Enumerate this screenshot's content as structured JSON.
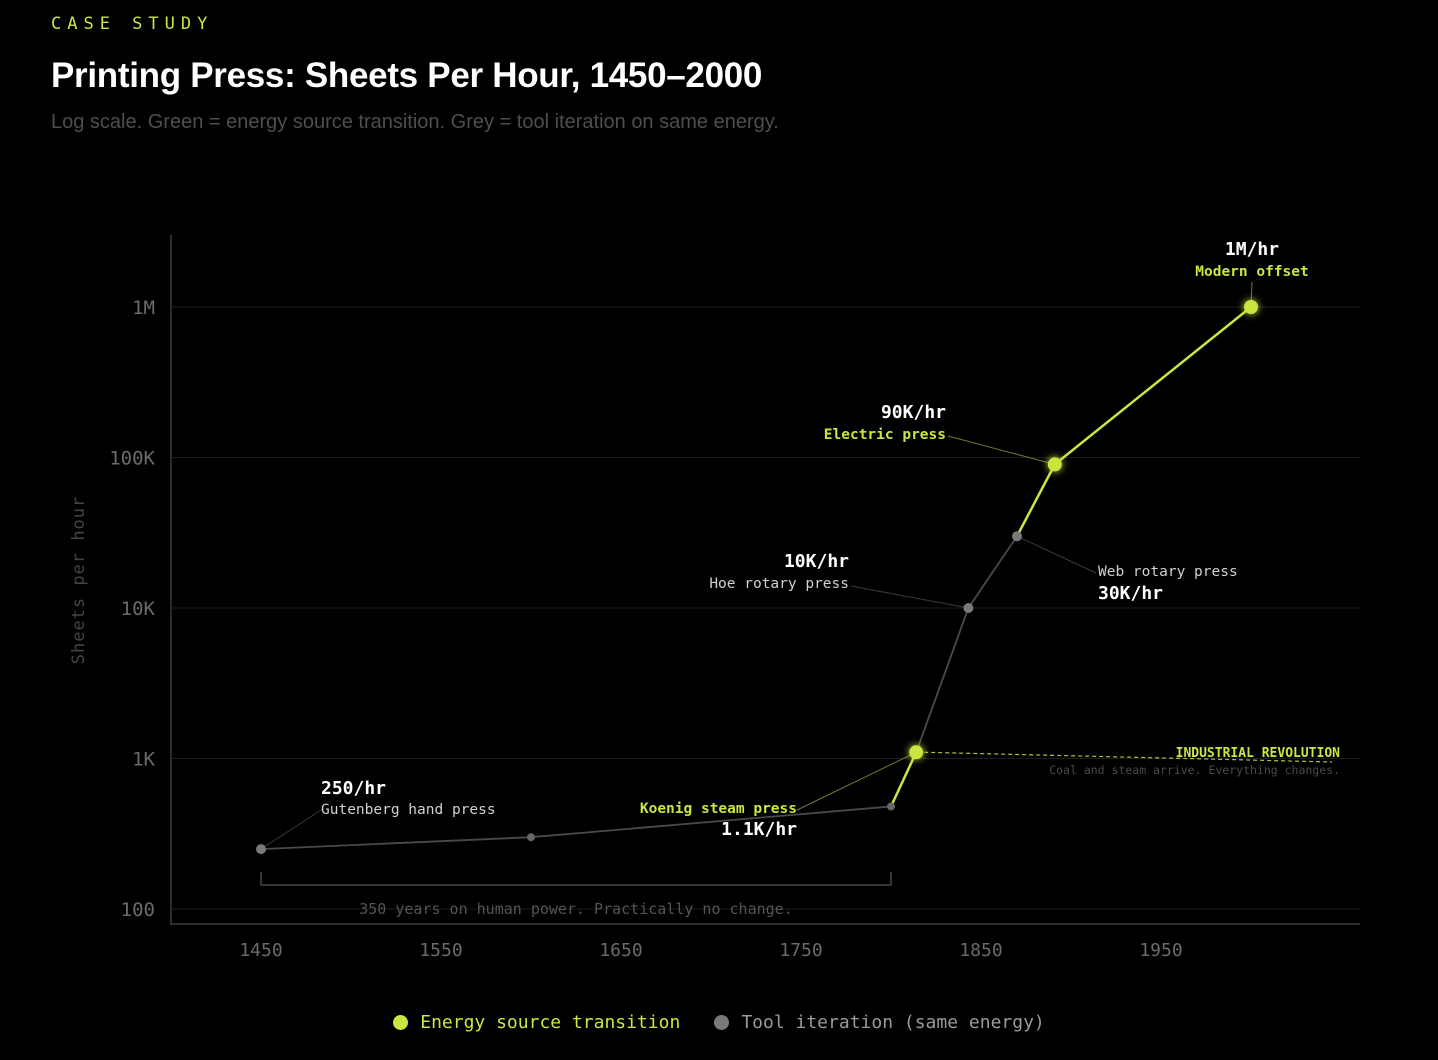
{
  "header": {
    "eyebrow": "CASE STUDY",
    "title": "Printing Press: Sheets Per Hour, 1450–2000",
    "subtitle": "Log scale. Green = energy source transition. Grey = tool iteration on same energy."
  },
  "colors": {
    "accent": "#c9e641",
    "tool": "#7a7a7a",
    "background": "#000000",
    "grid": "#1c1c1c",
    "axis_text": "#6b6b6b"
  },
  "chart_data": {
    "type": "line",
    "title": "Printing Press: Sheets Per Hour, 1450–2000",
    "xlabel": "",
    "ylabel": "Sheets per hour",
    "scale_y": "log",
    "xlim": [
      1400,
      2060
    ],
    "ylim": [
      80,
      2800000
    ],
    "x_ticks": [
      1450,
      1550,
      1650,
      1750,
      1850,
      1950
    ],
    "y_ticks": [
      {
        "value": 100,
        "label": "100"
      },
      {
        "value": 1000,
        "label": "1K"
      },
      {
        "value": 10000,
        "label": "10K"
      },
      {
        "value": 100000,
        "label": "100K"
      },
      {
        "value": 1000000,
        "label": "1M"
      }
    ],
    "points": [
      {
        "x": 1450,
        "y": 250,
        "kind": "tool",
        "label": "Gutenberg hand press",
        "value_label": "250/hr"
      },
      {
        "x": 1600,
        "y": 300,
        "kind": "tool-minor"
      },
      {
        "x": 1800,
        "y": 480,
        "kind": "tool-minor"
      },
      {
        "x": 1814,
        "y": 1100,
        "kind": "energy",
        "label": "Koenig steam press",
        "value_label": "1.1K/hr"
      },
      {
        "x": 1843,
        "y": 10000,
        "kind": "tool",
        "label": "Hoe rotary press",
        "value_label": "10K/hr"
      },
      {
        "x": 1870,
        "y": 30000,
        "kind": "tool",
        "label": "Web rotary press",
        "value_label": "30K/hr"
      },
      {
        "x": 1891,
        "y": 90000,
        "kind": "energy",
        "label": "Electric press",
        "value_label": "90K/hr"
      },
      {
        "x": 2000,
        "y": 1000000,
        "kind": "energy",
        "label": "Modern offset",
        "value_label": "1M/hr"
      }
    ],
    "annotations": {
      "industrial_title": "INDUSTRIAL REVOLUTION",
      "industrial_sub": "Coal and steam arrive. Everything changes.",
      "span_label": "350 years on human power. Practically no change.",
      "span_from": 1450,
      "span_to": 1800
    },
    "legend": [
      {
        "name": "Energy source transition",
        "kind": "energy"
      },
      {
        "name": "Tool iteration (same energy)",
        "kind": "tool"
      }
    ]
  }
}
